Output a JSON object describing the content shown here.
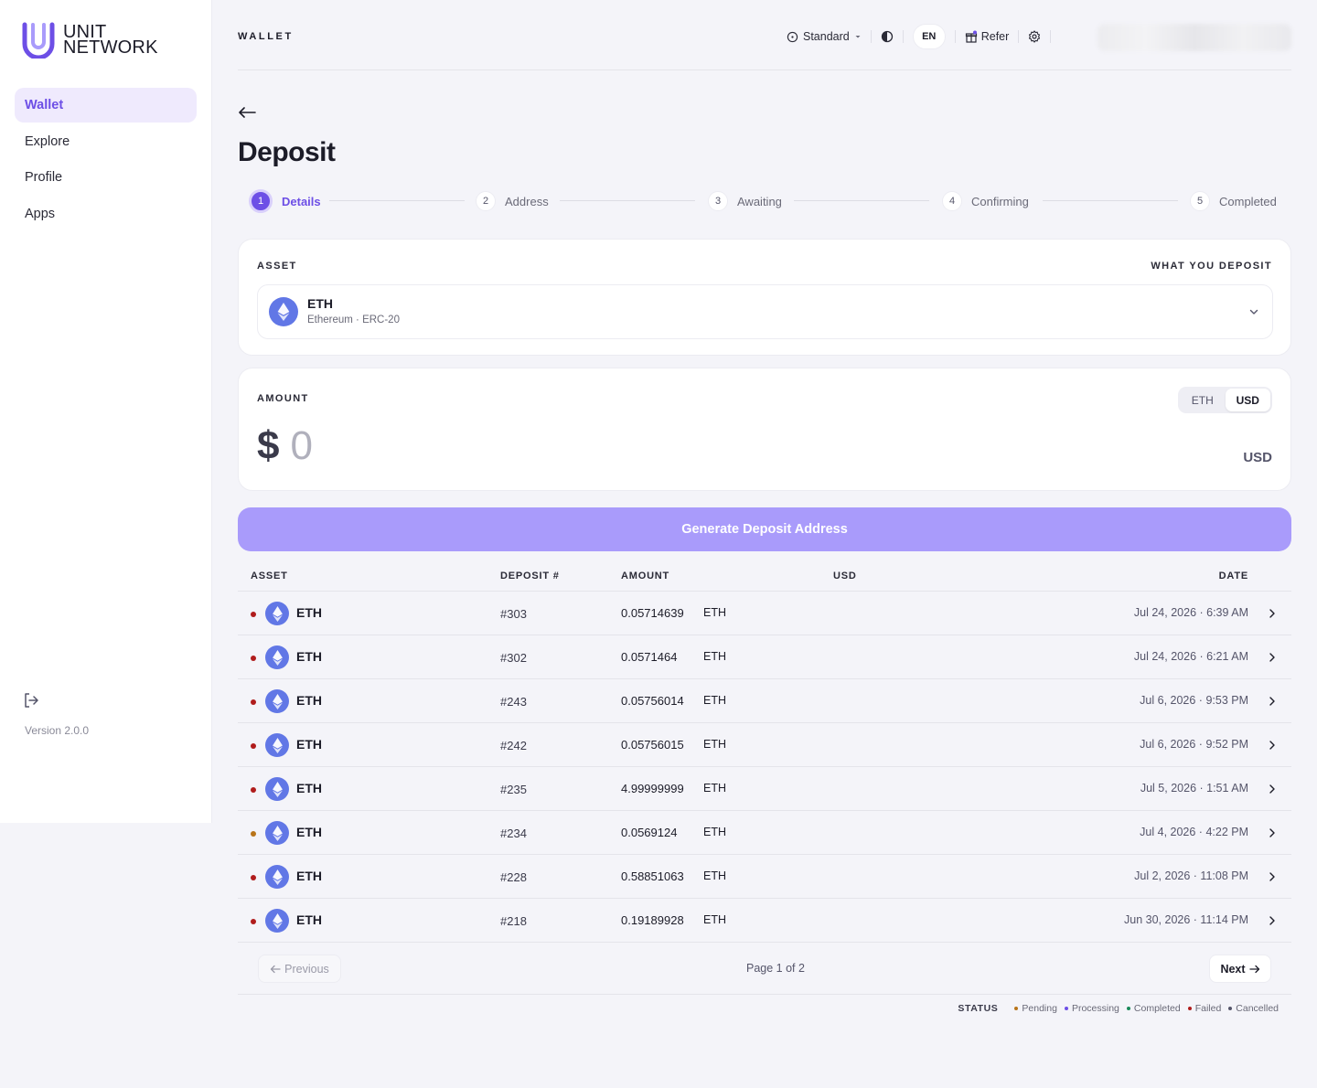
{
  "brand": {
    "line1": "UNIT",
    "line2": "NETWORK",
    "accent": "#6d4fe6"
  },
  "sidebar": {
    "items": [
      {
        "label": "Wallet"
      },
      {
        "label": "Explore"
      },
      {
        "label": "Profile"
      },
      {
        "label": "Apps"
      }
    ],
    "logout_icon": "logout-icon",
    "version": "Version 2.0.0"
  },
  "header": {
    "title": "WALLET",
    "mode": "Standard",
    "language": "EN",
    "refer": "Refer"
  },
  "page": {
    "title": "Deposit"
  },
  "stepper": [
    {
      "num": "1",
      "label": "Details"
    },
    {
      "num": "2",
      "label": "Address"
    },
    {
      "num": "3",
      "label": "Awaiting"
    },
    {
      "num": "4",
      "label": "Confirming"
    },
    {
      "num": "5",
      "label": "Completed"
    }
  ],
  "asset_card": {
    "label": "ASSET",
    "right_label": "WHAT YOU DEPOSIT",
    "selected_symbol": "ETH",
    "selected_network": "Ethereum · ERC-20"
  },
  "amount_card": {
    "label": "AMOUNT",
    "toggle": [
      "ETH",
      "USD"
    ],
    "toggle_selected": "USD",
    "currency_symbol": "$",
    "value": "0",
    "unit": "USD"
  },
  "generate_button": "Generate Deposit Address",
  "table": {
    "headers": [
      "ASSET",
      "DEPOSIT #",
      "AMOUNT",
      "USD",
      "DATE"
    ],
    "rows": [
      {
        "asset": "ETH",
        "num": "#303",
        "amount": "0.05714639",
        "unit": "ETH",
        "date": "Jul 24, 2026 · 6:39 AM",
        "status": "Failed"
      },
      {
        "asset": "ETH",
        "num": "#302",
        "amount": "0.0571464",
        "unit": "ETH",
        "date": "Jul 24, 2026 · 6:21 AM",
        "status": "Failed"
      },
      {
        "asset": "ETH",
        "num": "#243",
        "amount": "0.05756014",
        "unit": "ETH",
        "date": "Jul 6, 2026 · 9:53 PM",
        "status": "Failed"
      },
      {
        "asset": "ETH",
        "num": "#242",
        "amount": "0.05756015",
        "unit": "ETH",
        "date": "Jul 6, 2026 · 9:52 PM",
        "status": "Failed"
      },
      {
        "asset": "ETH",
        "num": "#235",
        "amount": "4.99999999",
        "unit": "ETH",
        "date": "Jul 5, 2026 · 1:51 AM",
        "status": "Failed"
      },
      {
        "asset": "ETH",
        "num": "#234",
        "amount": "0.0569124",
        "unit": "ETH",
        "date": "Jul 4, 2026 · 4:22 PM",
        "status": "Pending"
      },
      {
        "asset": "ETH",
        "num": "#228",
        "amount": "0.58851063",
        "unit": "ETH",
        "date": "Jul 2, 2026 · 11:08 PM",
        "status": "Failed"
      },
      {
        "asset": "ETH",
        "num": "#218",
        "amount": "0.19189928",
        "unit": "ETH",
        "date": "Jun 30, 2026 · 11:14 PM",
        "status": "Failed"
      }
    ]
  },
  "pager": {
    "prev": "Previous",
    "next": "Next",
    "info": "Page 1 of 2"
  },
  "legend": {
    "title": "STATUS",
    "items": [
      {
        "label": "Pending",
        "color": "#b8741a"
      },
      {
        "label": "Processing",
        "color": "#6d4fe6"
      },
      {
        "label": "Completed",
        "color": "#1a8a5a"
      },
      {
        "label": "Failed",
        "color": "#b01c1c"
      },
      {
        "label": "Cancelled",
        "color": "#55556a"
      }
    ]
  }
}
